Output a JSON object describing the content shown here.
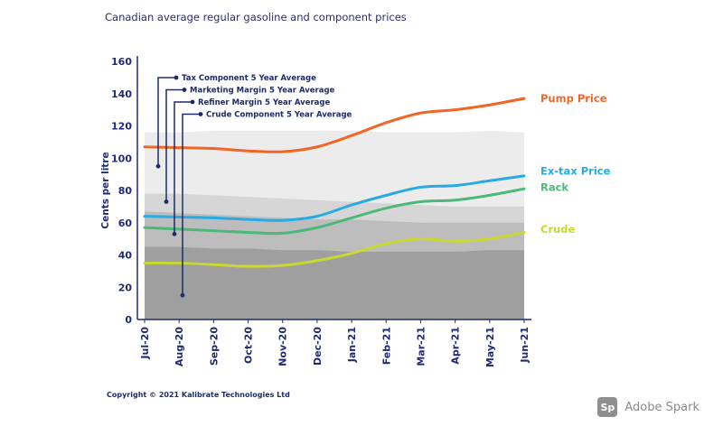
{
  "title": "Canadian average regular gasoline and component prices",
  "copyright": "Copyright © 2021 Kalibrate Technologies Ltd",
  "watermark": {
    "logo": "Sp",
    "text": "Adobe Spark"
  },
  "chart_data": {
    "type": "line",
    "ylabel": "Cents per litre",
    "ylim": [
      0,
      160
    ],
    "yticks": [
      0,
      20,
      40,
      60,
      80,
      100,
      120,
      140,
      160
    ],
    "categories": [
      "Jul-20",
      "Aug-20",
      "Sep-20",
      "Oct-20",
      "Nov-20",
      "Dec-20",
      "Jan-21",
      "Feb-21",
      "Mar-21",
      "Apr-21",
      "May-21",
      "Jun-21"
    ],
    "series": [
      {
        "name": "Pump Price",
        "color": "#f26522",
        "values": [
          107,
          106.5,
          106,
          104.5,
          104,
          107,
          114,
          122,
          128,
          130,
          133,
          137
        ]
      },
      {
        "name": "Ex-tax Price",
        "color": "#29abe2",
        "values": [
          64,
          63.5,
          63,
          62,
          61.5,
          64,
          71,
          77,
          82,
          83,
          86,
          89
        ]
      },
      {
        "name": "Rack",
        "color": "#4cb87a",
        "values": [
          57,
          56,
          55,
          54,
          53.5,
          57,
          63,
          69,
          73,
          74,
          77,
          81
        ]
      },
      {
        "name": "Crude",
        "color": "#c8d92f",
        "values": [
          35,
          35,
          34,
          33,
          33.5,
          36.5,
          41,
          47,
          50,
          48.5,
          50,
          54
        ]
      }
    ],
    "bands": [
      {
        "tone": "#d6d6d6",
        "upper": [
          78,
          78,
          77,
          76,
          75,
          74,
          73,
          72,
          71,
          70,
          70,
          70
        ]
      },
      {
        "tone": "#bdbdbd",
        "upper": [
          67,
          66,
          65,
          64,
          63,
          62,
          62,
          61,
          60,
          60,
          60,
          60
        ]
      },
      {
        "tone": "#9f9f9f",
        "upper": [
          45,
          45,
          44,
          44,
          43,
          43,
          42,
          42,
          42,
          42,
          43,
          43
        ]
      }
    ],
    "total_band_upper": [
      116,
      116,
      117,
      117,
      117,
      117,
      117,
      116,
      116,
      116,
      117,
      116
    ],
    "annotations": [
      {
        "text": "Tax Component 5 Year Average",
        "value": 95
      },
      {
        "text": "Marketing Margin 5 Year Average",
        "value": 73
      },
      {
        "text": "Refiner Margin 5 Year Average",
        "value": 53
      },
      {
        "text": "Crude Component 5 Year Average",
        "value": 15
      }
    ]
  }
}
